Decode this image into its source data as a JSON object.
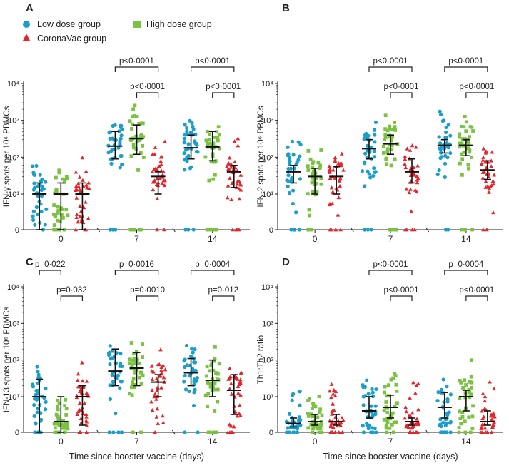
{
  "legend": {
    "items": [
      {
        "label": "Low dose group",
        "color": "#1b9ec9",
        "marker": "circle"
      },
      {
        "label": "High dose group",
        "color": "#7cc242",
        "marker": "square"
      },
      {
        "label": "CoronaVac group",
        "color": "#e3262c",
        "marker": "triangle"
      }
    ]
  },
  "chart_data": [
    {
      "panel": "A",
      "type": "scatter",
      "scale": "log-with-zero",
      "ylabel": "IFN-γ spots per 10⁶ PBMCs",
      "xlabel": "",
      "ytick_labels": [
        "0",
        "10¹",
        "10²",
        "10³",
        "10⁴"
      ],
      "categories": [
        "0",
        "7",
        "14"
      ],
      "series": [
        {
          "name": "Low dose group",
          "medians": [
            10,
            200,
            180
          ],
          "iqr": [
            [
              0,
              20
            ],
            [
              90,
              500
            ],
            [
              90,
              400
            ]
          ]
        },
        {
          "name": "High dose group",
          "medians": [
            10,
            320,
            190
          ],
          "iqr": [
            [
              0,
              20
            ],
            [
              120,
              750
            ],
            [
              80,
              500
            ]
          ]
        },
        {
          "name": "CoronaVac group",
          "medians": [
            10,
            30,
            40
          ],
          "iqr": [
            [
              0,
              20
            ],
            [
              10,
              40
            ],
            [
              15,
              60
            ]
          ]
        }
      ],
      "brackets": [
        {
          "text": "p<0·0001",
          "day": 1,
          "from": 0,
          "to": 2,
          "level": 1
        },
        {
          "text": "p<0·0001",
          "day": 1,
          "from": 1,
          "to": 2,
          "level": 0
        },
        {
          "text": "p<0·0001",
          "day": 2,
          "from": 0,
          "to": 2,
          "level": 1
        },
        {
          "text": "p<0·0001",
          "day": 2,
          "from": 1,
          "to": 2,
          "level": 0
        }
      ]
    },
    {
      "panel": "B",
      "type": "scatter",
      "scale": "log-with-zero",
      "ylabel": "IFN-2 spots per 10⁶ PBMCs",
      "xlabel": "",
      "ytick_labels": [
        "0",
        "10¹",
        "10²",
        "10³",
        "10⁴"
      ],
      "categories": [
        "0",
        "7",
        "14"
      ],
      "series": [
        {
          "name": "Low dose group",
          "medians": [
            40,
            170,
            210
          ],
          "iqr": [
            [
              20,
              60
            ],
            [
              90,
              300
            ],
            [
              130,
              300
            ]
          ]
        },
        {
          "name": "High dose group",
          "medians": [
            30,
            230,
            210
          ],
          "iqr": [
            [
              10,
              50
            ],
            [
              120,
              400
            ],
            [
              110,
              300
            ]
          ]
        },
        {
          "name": "CoronaVac group",
          "medians": [
            30,
            40,
            45
          ],
          "iqr": [
            [
              10,
              55
            ],
            [
              20,
              90
            ],
            [
              25,
              80
            ]
          ]
        }
      ],
      "brackets": [
        {
          "text": "p<0·0001",
          "day": 1,
          "from": 0,
          "to": 2,
          "level": 1
        },
        {
          "text": "p<0·0001",
          "day": 1,
          "from": 1,
          "to": 2,
          "level": 0
        },
        {
          "text": "p<0·0001",
          "day": 2,
          "from": 0,
          "to": 2,
          "level": 1
        },
        {
          "text": "p<0·0001",
          "day": 2,
          "from": 1,
          "to": 2,
          "level": 0
        }
      ]
    },
    {
      "panel": "C",
      "type": "scatter",
      "scale": "log-with-zero",
      "ylabel": "IFN-13 spots per 10⁶ PBMCs",
      "xlabel": "Time since booster vaccine (days)",
      "ytick_labels": [
        "0",
        "10¹",
        "10²",
        "10³",
        "10⁴"
      ],
      "categories": [
        "0",
        "7",
        "14"
      ],
      "series": [
        {
          "name": "Low dose group",
          "medians": [
            10,
            50,
            45
          ],
          "iqr": [
            [
              0,
              30
            ],
            [
              20,
              200
            ],
            [
              20,
              110
            ]
          ]
        },
        {
          "name": "High dose group",
          "medians": [
            3,
            60,
            28
          ],
          "iqr": [
            [
              0,
              10
            ],
            [
              20,
              160
            ],
            [
              10,
              100
            ]
          ]
        },
        {
          "name": "CoronaVac group",
          "medians": [
            10,
            25,
            15
          ],
          "iqr": [
            [
              2,
              20
            ],
            [
              10,
              40
            ],
            [
              5,
              40
            ]
          ]
        }
      ],
      "brackets": [
        {
          "text": "p=0·022",
          "day": 0,
          "from": 0,
          "to": 1,
          "level": 1
        },
        {
          "text": "p=0·032",
          "day": 0,
          "from": 1,
          "to": 2,
          "level": 0
        },
        {
          "text": "p=0·0016",
          "day": 1,
          "from": 0,
          "to": 2,
          "level": 1
        },
        {
          "text": "p=0·0010",
          "day": 1,
          "from": 1,
          "to": 2,
          "level": 0
        },
        {
          "text": "p=0·0004",
          "day": 2,
          "from": 0,
          "to": 2,
          "level": 1
        },
        {
          "text": "p=0·012",
          "day": 2,
          "from": 1,
          "to": 2,
          "level": 0
        }
      ]
    },
    {
      "panel": "D",
      "type": "scatter",
      "scale": "log-with-zero",
      "ylabel": "Th1:Th2 ratio",
      "xlabel": "Time since booster vaccine (days)",
      "ytick_labels": [
        "0",
        "10¹",
        "10²",
        "10³",
        "10⁴"
      ],
      "categories": [
        "0",
        "7",
        "14"
      ],
      "series": [
        {
          "name": "Low dose group",
          "medians": [
            2.5,
            6,
            7
          ],
          "iqr": [
            [
              1.5,
              4
            ],
            [
              4,
              10
            ],
            [
              4,
              13
            ]
          ]
        },
        {
          "name": "High dose group",
          "medians": [
            3,
            7,
            10
          ],
          "iqr": [
            [
              2,
              5
            ],
            [
              4,
              11
            ],
            [
              6,
              15
            ]
          ]
        },
        {
          "name": "CoronaVac group",
          "medians": [
            3,
            3,
            3
          ],
          "iqr": [
            [
              2,
              5
            ],
            [
              2,
              4
            ],
            [
              2,
              6
            ]
          ]
        }
      ],
      "brackets": [
        {
          "text": "p<0·0001",
          "day": 1,
          "from": 0,
          "to": 2,
          "level": 1
        },
        {
          "text": "p<0·0001",
          "day": 1,
          "from": 1,
          "to": 2,
          "level": 0
        },
        {
          "text": "p=0·0004",
          "day": 2,
          "from": 0,
          "to": 2,
          "level": 1
        },
        {
          "text": "p<0·0001",
          "day": 2,
          "from": 1,
          "to": 2,
          "level": 0
        }
      ]
    }
  ]
}
